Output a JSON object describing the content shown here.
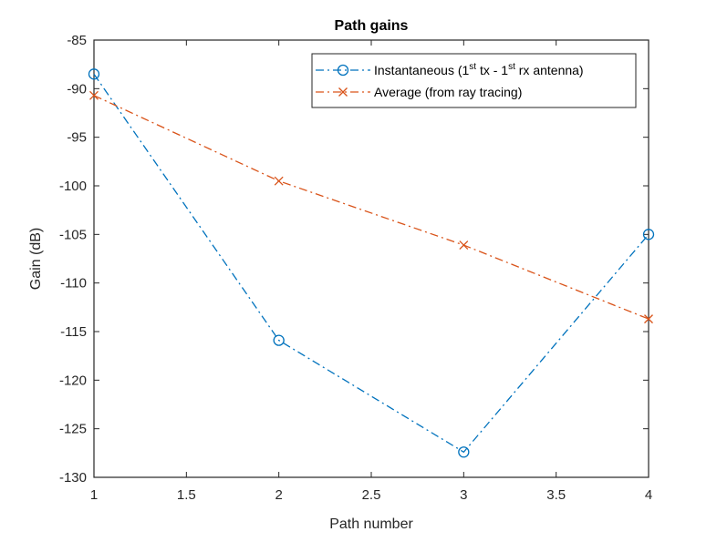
{
  "chart_data": {
    "type": "line",
    "title": "Path gains",
    "xlabel": "Path number",
    "ylabel": "Gain (dB)",
    "xlim": [
      1,
      4
    ],
    "ylim": [
      -130,
      -85
    ],
    "xticks": [
      1,
      1.5,
      2,
      2.5,
      3,
      3.5,
      4
    ],
    "xtick_labels": [
      "1",
      "1.5",
      "2",
      "2.5",
      "3",
      "3.5",
      "4"
    ],
    "yticks": [
      -85,
      -90,
      -95,
      -100,
      -105,
      -110,
      -115,
      -120,
      -125,
      -130
    ],
    "ytick_labels": [
      "-85",
      "-90",
      "-95",
      "-100",
      "-105",
      "-110",
      "-115",
      "-120",
      "-125",
      "-130"
    ],
    "grid": false,
    "legend_position": "upper right",
    "x": [
      1,
      2,
      3,
      4
    ],
    "series": [
      {
        "name": "Instantaneous (1st tx - 1st rx antenna)",
        "legend_parts": [
          "Instantaneous (1",
          "st",
          " tx - 1",
          "st",
          " rx antenna)"
        ],
        "values": [
          -88.5,
          -115.9,
          -127.4,
          -105.0
        ],
        "color": "#0072BD",
        "line_style": "dash-dot",
        "marker": "circle"
      },
      {
        "name": "Average (from ray tracing)",
        "values": [
          -90.7,
          -99.5,
          -106.1,
          -113.7
        ],
        "color": "#D95319",
        "line_style": "dash-dot",
        "marker": "x"
      }
    ]
  }
}
